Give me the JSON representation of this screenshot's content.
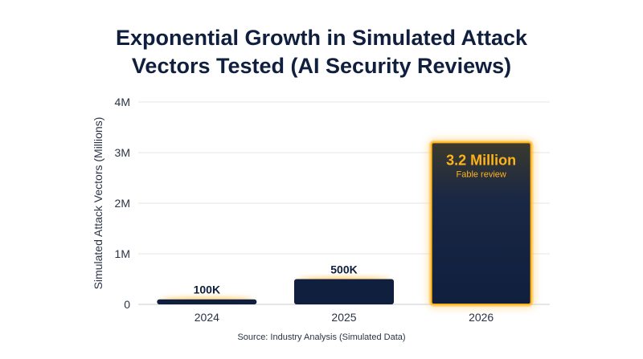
{
  "chart_data": {
    "type": "bar",
    "title_lines": [
      "Exponential Growth in Simulated Attack",
      "Vectors Tested (AI Security Reviews)"
    ],
    "xlabel": "",
    "ylabel": "Simulated Attack Vectors (Millions)",
    "categories": [
      "2024",
      "2025",
      "2026"
    ],
    "values": [
      0.1,
      0.5,
      3.2
    ],
    "ylim": [
      0,
      4
    ],
    "yticks": [
      0,
      1,
      2,
      3,
      4
    ],
    "ytick_labels": [
      "0",
      "1M",
      "2M",
      "3M",
      "4M"
    ],
    "data_labels": [
      "100K",
      "500K",
      "3.2 Million"
    ],
    "highlight": {
      "index": 2,
      "sublabel": "Fable review"
    },
    "grid": true,
    "legend": "none",
    "source": "Source: Industry Analysis (Simulated Data)",
    "colors": {
      "bar": "#0f1f3d",
      "bar_glow": "#ffb31a",
      "highlight_label": "#ffb31a",
      "title": "#0f1f3d",
      "grid": "#e3e6ea"
    }
  }
}
